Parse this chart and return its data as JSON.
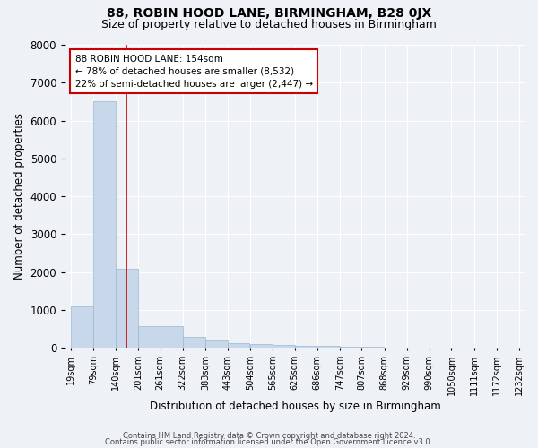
{
  "title": "88, ROBIN HOOD LANE, BIRMINGHAM, B28 0JX",
  "subtitle": "Size of property relative to detached houses in Birmingham",
  "xlabel": "Distribution of detached houses by size in Birmingham",
  "ylabel": "Number of detached properties",
  "annotation_line1": "88 ROBIN HOOD LANE: 154sqm",
  "annotation_line2": "← 78% of detached houses are smaller (8,532)",
  "annotation_line3": "22% of semi-detached houses are larger (2,447) →",
  "footnote1": "Contains HM Land Registry data © Crown copyright and database right 2024.",
  "footnote2": "Contains public sector information licensed under the Open Government Licence v3.0.",
  "bar_left_edges": [
    19,
    79,
    140,
    201,
    261,
    322,
    383,
    443,
    504,
    565,
    625,
    686,
    747,
    807,
    868,
    929,
    990,
    1050,
    1111,
    1172
  ],
  "bar_widths": [
    61,
    61,
    61,
    61,
    61,
    61,
    61,
    61,
    61,
    61,
    61,
    61,
    61,
    61,
    61,
    61,
    61,
    61,
    61,
    61
  ],
  "bar_heights": [
    1100,
    6500,
    2100,
    580,
    580,
    280,
    190,
    120,
    95,
    75,
    65,
    55,
    40,
    25,
    18,
    12,
    8,
    6,
    4,
    2
  ],
  "bar_color": "#c8d8ea",
  "bar_edgecolor": "#99b8d0",
  "vline_x": 170,
  "vline_color": "#cc0000",
  "annotation_box_facecolor": "#ffffff",
  "annotation_box_edgecolor": "#cc0000",
  "ylim": [
    0,
    8000
  ],
  "yticks": [
    0,
    1000,
    2000,
    3000,
    4000,
    5000,
    6000,
    7000,
    8000
  ],
  "tick_labels": [
    "19sqm",
    "79sqm",
    "140sqm",
    "201sqm",
    "261sqm",
    "322sqm",
    "383sqm",
    "443sqm",
    "504sqm",
    "565sqm",
    "625sqm",
    "686sqm",
    "747sqm",
    "807sqm",
    "868sqm",
    "929sqm",
    "990sqm",
    "1050sqm",
    "1111sqm",
    "1172sqm",
    "1232sqm"
  ],
  "background_color": "#eef2f7",
  "grid_color": "#ffffff",
  "title_fontsize": 10,
  "subtitle_fontsize": 9,
  "axis_label_fontsize": 8.5,
  "ytick_fontsize": 8.5,
  "xtick_fontsize": 7,
  "annotation_fontsize": 7.5,
  "footnote_fontsize": 6
}
